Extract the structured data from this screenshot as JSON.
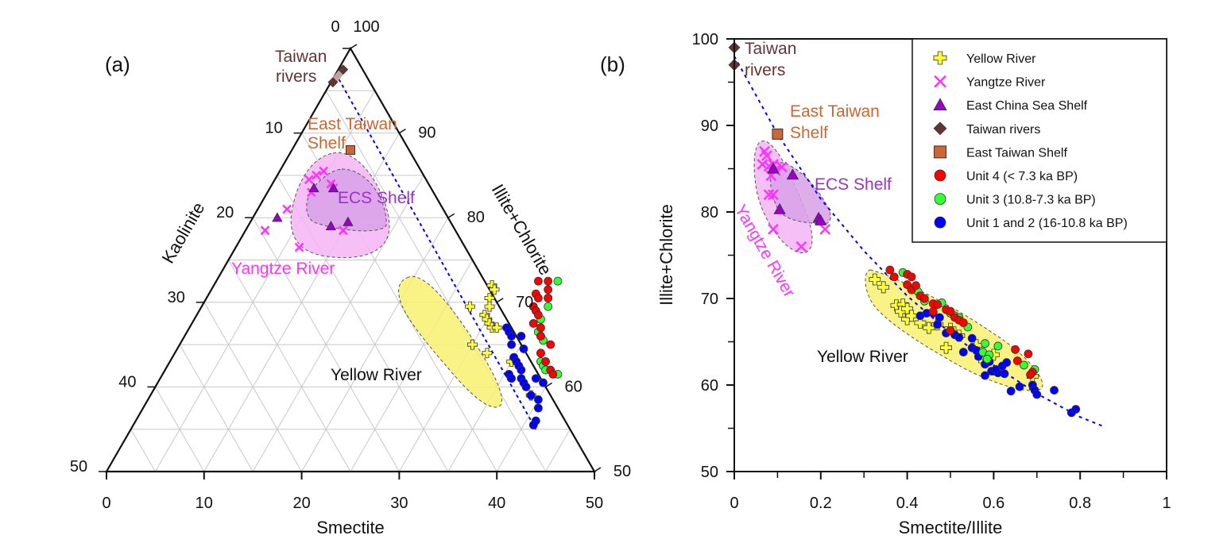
{
  "colors": {
    "yellow_river": "#ffff33",
    "yangtze": "#ff33ff",
    "ecs_shelf": "#9900cc",
    "taiwan_rivers": "#663333",
    "east_taiwan_shelf": "#cc6633",
    "unit4": "#ff0000",
    "unit3": "#33ff33",
    "unit12": "#0000ff",
    "trend_line": "#0000ff",
    "yangtze_field": "#f5b5f5",
    "ecs_field": "#d8a0e8",
    "yellow_field": "#f8f070",
    "taiwan_label": "#663333",
    "ets_label": "#cc6633",
    "ecs_label": "#9933cc",
    "yangtze_label": "#ff33ff"
  },
  "chart_data": [
    {
      "panel": "(a)",
      "type": "scatter",
      "subtype": "ternary",
      "axes": {
        "bottom": {
          "title": "Smectite",
          "range": [
            0,
            50
          ],
          "ticks": [
            "0",
            "10",
            "20",
            "30",
            "40",
            "50"
          ]
        },
        "left": {
          "title": "Kaolinite",
          "range": [
            0,
            50
          ],
          "ticks": [
            "0",
            "10",
            "20",
            "30",
            "40",
            "50"
          ]
        },
        "right": {
          "title": "Illite+Chlorite",
          "range": [
            50,
            100
          ],
          "ticks": [
            "100",
            "90",
            "80",
            "70",
            "60",
            "50"
          ]
        }
      },
      "grid": true,
      "annotations": [
        "Taiwan rivers",
        "East Taiwan Shelf",
        "ECS Shelf",
        "Yangtze River",
        "Yellow River"
      ],
      "series": [
        {
          "name": "Taiwan rivers",
          "marker": "diamond",
          "points": [
            {
              "S": 0.5,
              "I": 97.5
            },
            {
              "S": 0.2,
              "I": 96
            }
          ]
        },
        {
          "name": "East Taiwan Shelf",
          "marker": "square",
          "points": [
            {
              "S": 6,
              "I": 88
            }
          ]
        },
        {
          "name": "Yangtze River",
          "marker": "x",
          "points": [
            {
              "S": 4.5,
              "I": 85.5
            },
            {
              "S": 4,
              "I": 85
            },
            {
              "S": 3.5,
              "I": 84.5
            },
            {
              "S": 6,
              "I": 84
            },
            {
              "S": 6.5,
              "I": 83.5
            },
            {
              "S": 4.5,
              "I": 83
            },
            {
              "S": 3,
              "I": 81
            },
            {
              "S": 2,
              "I": 78.5
            },
            {
              "S": 10,
              "I": 78.5
            },
            {
              "S": 6.5,
              "I": 76.5
            }
          ]
        },
        {
          "name": "East China Sea Shelf",
          "marker": "triangle",
          "points": [
            {
              "S": 4.5,
              "I": 83.5
            },
            {
              "S": 6.5,
              "I": 83.5
            },
            {
              "S": 2.5,
              "I": 80
            },
            {
              "S": 8.5,
              "I": 79
            },
            {
              "S": 10,
              "I": 79.5
            }
          ]
        },
        {
          "name": "Yellow River",
          "marker": "plus",
          "points": [
            {
              "S": 28.5,
              "I": 72
            },
            {
              "S": 29,
              "I": 71.5
            },
            {
              "S": 27.5,
              "I": 69.5
            },
            {
              "S": 29,
              "I": 70.5
            },
            {
              "S": 29.5,
              "I": 69.5
            },
            {
              "S": 29.5,
              "I": 68.5
            },
            {
              "S": 30,
              "I": 68
            },
            {
              "S": 30.5,
              "I": 67.5
            },
            {
              "S": 31,
              "I": 67
            },
            {
              "S": 31.5,
              "I": 67
            },
            {
              "S": 30,
              "I": 65
            },
            {
              "S": 32,
              "I": 64
            },
            {
              "S": 35,
              "I": 63
            },
            {
              "S": 39,
              "I": 59
            }
          ]
        },
        {
          "name": "Unit 4 (< 7.3 ka BP)",
          "marker": "circle",
          "points": [
            {
              "S": 33,
              "I": 72.5
            },
            {
              "S": 34,
              "I": 72.5
            },
            {
              "S": 34.5,
              "I": 71.5
            },
            {
              "S": 33.5,
              "I": 71
            },
            {
              "S": 34,
              "I": 70.5
            },
            {
              "S": 35,
              "I": 70.5
            },
            {
              "S": 34,
              "I": 69.5
            },
            {
              "S": 34.5,
              "I": 69
            },
            {
              "S": 35,
              "I": 68.5
            },
            {
              "S": 35,
              "I": 67.5
            },
            {
              "S": 36,
              "I": 67
            },
            {
              "S": 36.5,
              "I": 66
            },
            {
              "S": 38,
              "I": 65
            },
            {
              "S": 37.5,
              "I": 64
            },
            {
              "S": 38.5,
              "I": 63
            },
            {
              "S": 39.5,
              "I": 62
            },
            {
              "S": 40,
              "I": 61.5
            }
          ]
        },
        {
          "name": "Unit 3 (10.8-7.3 ka BP)",
          "marker": "circle",
          "points": [
            {
              "S": 35,
              "I": 72.5
            },
            {
              "S": 35,
              "I": 70.5
            },
            {
              "S": 35.5,
              "I": 69.5
            },
            {
              "S": 35.5,
              "I": 68
            },
            {
              "S": 36,
              "I": 66.5
            },
            {
              "S": 36.5,
              "I": 66
            },
            {
              "S": 37,
              "I": 65.5
            },
            {
              "S": 37.5,
              "I": 64
            },
            {
              "S": 38,
              "I": 63
            },
            {
              "S": 38.5,
              "I": 62.5
            },
            {
              "S": 39,
              "I": 62
            },
            {
              "S": 40.5,
              "I": 61.5
            }
          ]
        },
        {
          "name": "Unit 1 and 2 (16-10.8 ka BP)",
          "marker": "circle",
          "points": [
            {
              "S": 32.5,
              "I": 67
            },
            {
              "S": 33,
              "I": 66.5
            },
            {
              "S": 33.5,
              "I": 66
            },
            {
              "S": 34.5,
              "I": 66
            },
            {
              "S": 34,
              "I": 65
            },
            {
              "S": 35.5,
              "I": 64.5
            },
            {
              "S": 35,
              "I": 63.5
            },
            {
              "S": 35.5,
              "I": 63
            },
            {
              "S": 36,
              "I": 62.5
            },
            {
              "S": 36.5,
              "I": 62
            },
            {
              "S": 35.5,
              "I": 61.5
            },
            {
              "S": 36,
              "I": 61
            },
            {
              "S": 37,
              "I": 61
            },
            {
              "S": 37.5,
              "I": 60.5
            },
            {
              "S": 38.5,
              "I": 61
            },
            {
              "S": 38,
              "I": 60
            },
            {
              "S": 39.5,
              "I": 60.5
            },
            {
              "S": 39,
              "I": 59
            },
            {
              "S": 40,
              "I": 58.5
            },
            {
              "S": 40.5,
              "I": 57.5
            },
            {
              "S": 41,
              "I": 56
            },
            {
              "S": 41,
              "I": 55.5
            }
          ]
        }
      ]
    },
    {
      "panel": "(b)",
      "type": "scatter",
      "xlabel": "Smectite/Illite",
      "ylabel": "Illite+Chlorite",
      "xlim": [
        0,
        1
      ],
      "ylim": [
        50,
        100
      ],
      "xticks": [
        "0",
        "0.2",
        "0.4",
        "0.6",
        "0.8",
        "1"
      ],
      "yticks": [
        "50",
        "60",
        "70",
        "80",
        "90",
        "100"
      ],
      "grid": false,
      "legend_position": "top-right",
      "legend": [
        {
          "label": "Yellow River",
          "marker": "plus",
          "color": "#ffff33"
        },
        {
          "label": "Yangtze River",
          "marker": "x",
          "color": "#ff33ff"
        },
        {
          "label": "East China Sea Shelf",
          "marker": "triangle",
          "color": "#9900cc"
        },
        {
          "label": "Taiwan rivers",
          "marker": "diamond",
          "color": "#663333"
        },
        {
          "label": "East Taiwan Shelf",
          "marker": "square",
          "color": "#cc6633"
        },
        {
          "label": "Unit 4 (< 7.3 ka BP)",
          "marker": "circle",
          "color": "#ff0000"
        },
        {
          "label": "Unit 3 (10.8-7.3 ka BP)",
          "marker": "circle",
          "color": "#33ff33"
        },
        {
          "label": "Unit 1 and 2 (16-10.8 ka BP)",
          "marker": "circle",
          "color": "#0000ff"
        }
      ],
      "annotations": [
        "Taiwan rivers",
        "East Taiwan Shelf",
        "ECS Shelf",
        "Yangtze River",
        "Yellow River"
      ],
      "trend_line": {
        "style": "dashed",
        "x": [
          0,
          0.1,
          0.2,
          0.3,
          0.4,
          0.5,
          0.6,
          0.7,
          0.8,
          0.85
        ],
        "y": [
          98,
          89,
          81.5,
          75.5,
          70.3,
          66,
          62.3,
          59,
          56.3,
          55.3
        ]
      },
      "series": [
        {
          "name": "Taiwan rivers",
          "marker": "diamond",
          "x": [
            0.0,
            0.0
          ],
          "y": [
            99,
            97
          ]
        },
        {
          "name": "East Taiwan Shelf",
          "marker": "square",
          "x": [
            0.1
          ],
          "y": [
            89
          ]
        },
        {
          "name": "Yangtze River",
          "marker": "x",
          "x": [
            0.07,
            0.075,
            0.065,
            0.08,
            0.09,
            0.095,
            0.11,
            0.085,
            0.09,
            0.08,
            0.09,
            0.155,
            0.21
          ],
          "y": [
            87,
            86.5,
            85.5,
            85.3,
            85.5,
            84.8,
            85.2,
            84.2,
            82,
            82,
            78,
            76,
            78
          ]
        },
        {
          "name": "East China Sea Shelf",
          "marker": "triangle",
          "x": [
            0.09,
            0.135,
            0.105,
            0.195,
            0.2
          ],
          "y": [
            85,
            84.3,
            80.3,
            79.3,
            79
          ]
        },
        {
          "name": "Yellow River",
          "marker": "plus",
          "x": [
            0.325,
            0.345,
            0.375,
            0.39,
            0.385,
            0.4,
            0.4,
            0.41,
            0.43,
            0.45,
            0.47,
            0.49,
            0.5,
            0.52,
            0.56,
            0.57,
            0.6,
            0.69
          ],
          "y": [
            72.2,
            71.3,
            69.2,
            69.3,
            68.5,
            68.8,
            67.6,
            68,
            67.2,
            66.6,
            67,
            64.3,
            66.5,
            65.7,
            64.6,
            63.2,
            63.5,
            61
          ]
        },
        {
          "name": "Unit 4 (< 7.3 ka BP)",
          "marker": "circle",
          "x": [
            0.36,
            0.37,
            0.4,
            0.41,
            0.4,
            0.41,
            0.42,
            0.43,
            0.44,
            0.46,
            0.47,
            0.49,
            0.5,
            0.51,
            0.52,
            0.53,
            0.46,
            0.5,
            0.65,
            0.68,
            0.655,
            0.69,
            0.685
          ],
          "y": [
            73.3,
            72.5,
            72.8,
            72.5,
            71.6,
            71,
            71.5,
            70.3,
            70,
            69.4,
            69.3,
            68.7,
            68.5,
            67.8,
            67.5,
            67.2,
            68.5,
            66.3,
            64.1,
            63.6,
            62.8,
            61.5,
            61.2
          ]
        },
        {
          "name": "Unit 3 (10.8-7.3 ka BP)",
          "marker": "circle",
          "x": [
            0.39,
            0.425,
            0.44,
            0.48,
            0.5,
            0.51,
            0.52,
            0.54,
            0.58,
            0.61,
            0.575,
            0.59,
            0.67,
            0.695,
            0.585
          ],
          "y": [
            73,
            70.8,
            69.7,
            69.5,
            68.3,
            68,
            67.8,
            66.7,
            64.8,
            64.5,
            63.8,
            63.5,
            62.3,
            61.8,
            63
          ]
        },
        {
          "name": "Unit 1 and 2 (16-10.8 ka BP)",
          "marker": "circle",
          "x": [
            0.43,
            0.445,
            0.46,
            0.475,
            0.47,
            0.49,
            0.51,
            0.52,
            0.55,
            0.55,
            0.53,
            0.56,
            0.565,
            0.58,
            0.59,
            0.6,
            0.61,
            0.62,
            0.63,
            0.58,
            0.595,
            0.605,
            0.625,
            0.64,
            0.66,
            0.69,
            0.695,
            0.7,
            0.74,
            0.78,
            0.79
          ],
          "y": [
            68,
            68.3,
            68.3,
            67.8,
            67,
            66,
            65.8,
            65.5,
            65.4,
            64.3,
            63.8,
            64,
            63.3,
            62.4,
            62.7,
            61.6,
            61.4,
            62.2,
            62.6,
            61.1,
            61.6,
            61.8,
            61.3,
            59.3,
            59.8,
            60,
            59.4,
            58.9,
            59.4,
            56.8,
            57.2
          ]
        }
      ]
    }
  ]
}
